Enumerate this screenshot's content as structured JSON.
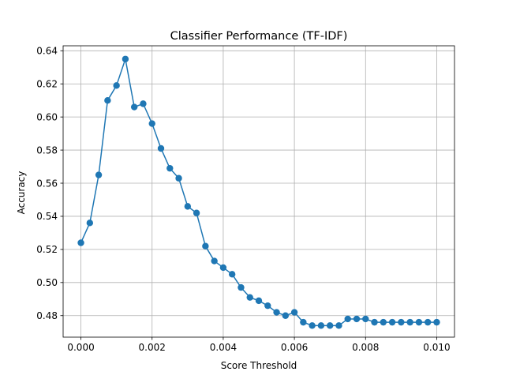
{
  "chart_data": {
    "type": "line",
    "title": "Classifier Performance (TF-IDF)",
    "xlabel": "Score Threshold",
    "ylabel": "Accuracy",
    "xlim": [
      -0.0005,
      0.0105
    ],
    "ylim": [
      0.467,
      0.643
    ],
    "grid": true,
    "x_ticks": [
      0.0,
      0.002,
      0.004,
      0.006,
      0.008,
      0.01
    ],
    "x_tick_labels": [
      "0.000",
      "0.002",
      "0.004",
      "0.006",
      "0.008",
      "0.010"
    ],
    "y_ticks": [
      0.48,
      0.5,
      0.52,
      0.54,
      0.56,
      0.58,
      0.6,
      0.62,
      0.64
    ],
    "y_tick_labels": [
      "0.48",
      "0.50",
      "0.52",
      "0.54",
      "0.56",
      "0.58",
      "0.60",
      "0.62",
      "0.64"
    ],
    "series": [
      {
        "color": "#1f77b4",
        "marker": "circle",
        "x": [
          0.0,
          0.00025,
          0.0005,
          0.00075,
          0.001,
          0.00125,
          0.0015,
          0.00175,
          0.002,
          0.00225,
          0.0025,
          0.00275,
          0.003,
          0.00325,
          0.0035,
          0.00375,
          0.004,
          0.00425,
          0.0045,
          0.00475,
          0.005,
          0.00525,
          0.0055,
          0.00575,
          0.006,
          0.00625,
          0.0065,
          0.00675,
          0.007,
          0.00725,
          0.0075,
          0.00775,
          0.008,
          0.00825,
          0.0085,
          0.00875,
          0.009,
          0.00925,
          0.0095,
          0.00975,
          0.01
        ],
        "values": [
          0.524,
          0.536,
          0.565,
          0.61,
          0.619,
          0.635,
          0.606,
          0.608,
          0.596,
          0.581,
          0.569,
          0.563,
          0.546,
          0.542,
          0.522,
          0.513,
          0.509,
          0.505,
          0.497,
          0.491,
          0.489,
          0.486,
          0.482,
          0.48,
          0.482,
          0.476,
          0.474,
          0.474,
          0.474,
          0.474,
          0.478,
          0.478,
          0.478,
          0.476,
          0.476,
          0.476,
          0.476,
          0.476,
          0.476,
          0.476,
          0.476
        ]
      }
    ]
  }
}
